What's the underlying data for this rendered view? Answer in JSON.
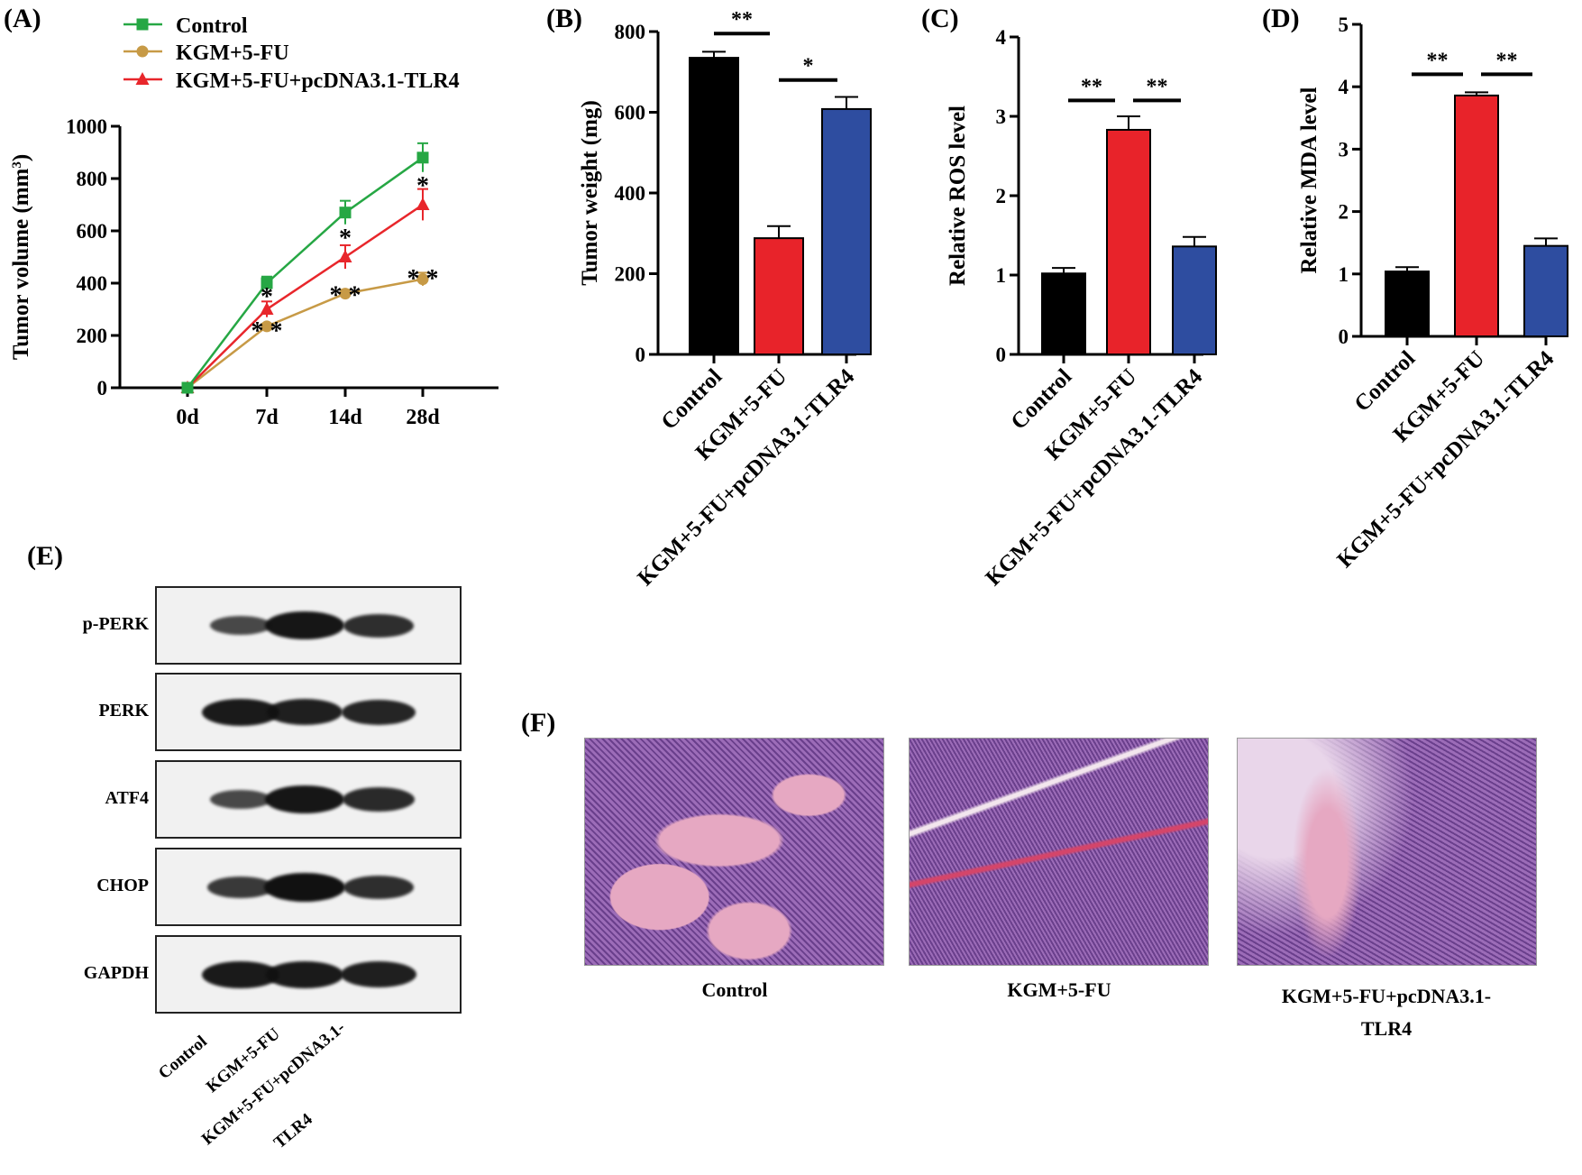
{
  "panels": {
    "a": "(A)",
    "b": "(B)",
    "c": "(C)",
    "d": "(D)",
    "e": "(E)",
    "f": "(F)"
  },
  "colors": {
    "control": "#26a744",
    "kgm": "#c79a46",
    "tlr4": "#e8262b",
    "bar_black": "#000000",
    "bar_red": "#e8232a",
    "bar_blue": "#2e4da0"
  },
  "chart_data": [
    {
      "panel": "A",
      "type": "line",
      "ylabel": "Tumor volume (mm",
      "ylabel_sup": "3",
      "ylabel_close": ")",
      "x": [
        "0d",
        "7d",
        "14d",
        "28d"
      ],
      "ylim": [
        0,
        1000
      ],
      "yticks": [
        0,
        200,
        400,
        600,
        800,
        1000
      ],
      "series": [
        {
          "name": "Control",
          "values": [
            0,
            400,
            670,
            880
          ],
          "err": [
            0,
            25,
            45,
            55
          ],
          "marker": "square",
          "color": "#26a744"
        },
        {
          "name": "KGM+5-FU",
          "values": [
            0,
            235,
            360,
            415
          ],
          "err": [
            0,
            10,
            15,
            25
          ],
          "marker": "circle",
          "color": "#c79a46"
        },
        {
          "name": "KGM+5-FU+pcDNA3.1-TLR4",
          "values": [
            0,
            300,
            500,
            700
          ],
          "err": [
            0,
            30,
            45,
            60
          ],
          "marker": "triangle",
          "color": "#e8262b"
        }
      ],
      "annotations": [
        {
          "text": "*",
          "x": "7d",
          "y": 365
        },
        {
          "text": "* *",
          "x": "7d",
          "y": 235
        },
        {
          "text": "*",
          "x": "14d",
          "y": 590
        },
        {
          "text": "* *",
          "x": "14d",
          "y": 370
        },
        {
          "text": "*",
          "x": "28d",
          "y": 790
        },
        {
          "text": "* *",
          "x": "28d",
          "y": 435
        }
      ]
    },
    {
      "panel": "B",
      "type": "bar",
      "ylabel": "Tumor weight (mg)",
      "categories": [
        "Control",
        "KGM+5-FU",
        "KGM+5-FU+pcDNA3.1-TLR4"
      ],
      "values": [
        735,
        288,
        608
      ],
      "err": [
        15,
        30,
        30
      ],
      "colors": [
        "#000000",
        "#e8232a",
        "#2e4da0"
      ],
      "ylim": [
        0,
        800
      ],
      "yticks": [
        0,
        200,
        400,
        600,
        800
      ],
      "significance": [
        {
          "from": 0,
          "to": 1,
          "label": "**",
          "y": 795
        },
        {
          "from": 1,
          "to": 2,
          "label": "*",
          "y": 680
        }
      ]
    },
    {
      "panel": "C",
      "type": "bar",
      "ylabel": "Relative ROS level",
      "categories": [
        "Control",
        "KGM+5-FU",
        "KGM+5-FU+pcDNA3.1-TLR4"
      ],
      "values": [
        1.02,
        2.83,
        1.36
      ],
      "err": [
        0.07,
        0.17,
        0.12
      ],
      "colors": [
        "#000000",
        "#e8232a",
        "#2e4da0"
      ],
      "ylim": [
        0,
        4
      ],
      "yticks": [
        0,
        1,
        2,
        3,
        4
      ],
      "significance": [
        {
          "from": 0,
          "to": 1,
          "label": "**",
          "y": 3.2
        },
        {
          "from": 1,
          "to": 2,
          "label": "**",
          "y": 3.2
        }
      ]
    },
    {
      "panel": "D",
      "type": "bar",
      "ylabel": "Relative MDA level",
      "categories": [
        "Control",
        "KGM+5-FU",
        "KGM+5-FU+pcDNA3.1-TLR4"
      ],
      "values": [
        1.04,
        3.86,
        1.45
      ],
      "err": [
        0.07,
        0.05,
        0.12
      ],
      "colors": [
        "#000000",
        "#e8232a",
        "#2e4da0"
      ],
      "ylim": [
        0,
        5
      ],
      "yticks": [
        0,
        1,
        2,
        3,
        4,
        5
      ],
      "significance": [
        {
          "from": 0,
          "to": 1,
          "label": "**",
          "y": 4.2
        },
        {
          "from": 1,
          "to": 2,
          "label": "**",
          "y": 4.2
        }
      ]
    }
  ],
  "blot": {
    "rows": [
      {
        "label": "p-PERK",
        "intensity": [
          0.45,
          0.95,
          0.7
        ]
      },
      {
        "label": "PERK",
        "intensity": [
          0.9,
          0.85,
          0.8
        ]
      },
      {
        "label": "ATF4",
        "intensity": [
          0.45,
          0.95,
          0.75
        ]
      },
      {
        "label": "CHOP",
        "intensity": [
          0.6,
          1.0,
          0.7
        ]
      },
      {
        "label": "GAPDH",
        "intensity": [
          0.9,
          0.9,
          0.85
        ]
      }
    ],
    "lanes": [
      "Control",
      "KGM+5-FU",
      "KGM+5-FU+pcDNA3.1-",
      "TLR4"
    ]
  },
  "histology": {
    "captions": [
      "Control",
      "KGM+5-FU",
      "KGM+5-FU+pcDNA3.1-",
      "TLR4"
    ],
    "colors": {
      "base": "#9c6cb8",
      "pink": "#e6a8c2",
      "dark": "#6a3f8c",
      "vessel": "#d4456a"
    }
  }
}
